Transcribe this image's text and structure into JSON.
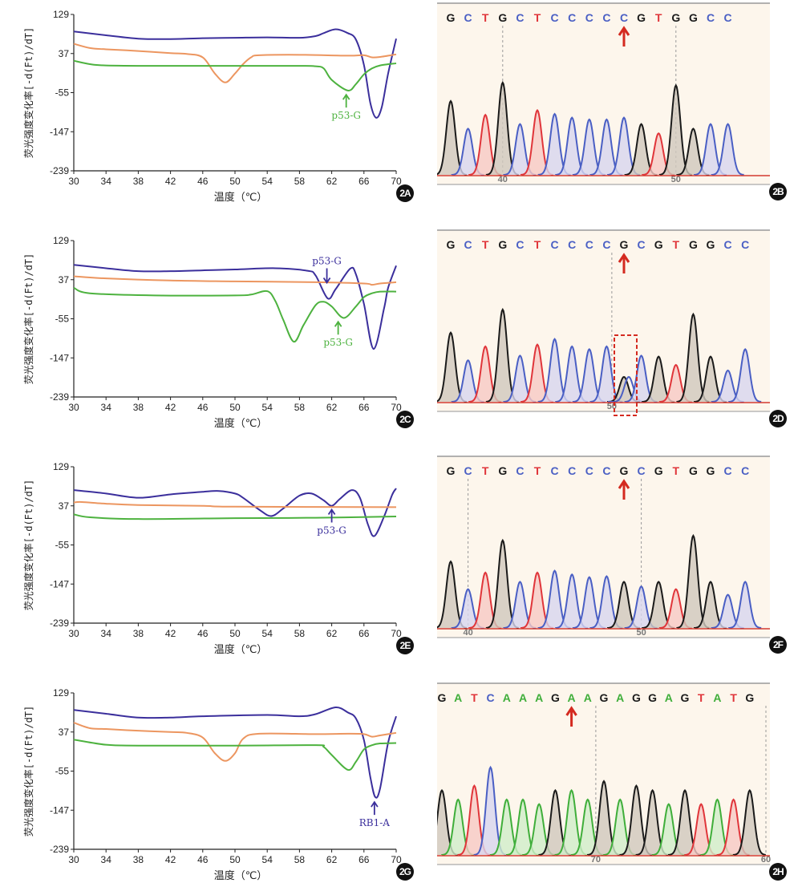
{
  "colors": {
    "blue": "#3b2f9c",
    "orange": "#ec9660",
    "green": "#4db23f",
    "red_arrow": "#d42a20",
    "base_G": "#1a1a1a",
    "base_C": "#4a5fc4",
    "base_T": "#e0353a",
    "base_A": "#3fae3a"
  },
  "chart_data": [
    {
      "id": "2A",
      "type": "line",
      "xlabel": "温度（℃）",
      "ylabel": "荧光强度变化率[-d(Ft)/dT]",
      "xlim": [
        30,
        70
      ],
      "ylim": [
        -239,
        129
      ],
      "xticks": [
        30,
        34,
        38,
        42,
        46,
        50,
        54,
        58,
        62,
        66,
        70
      ],
      "yticks": [
        129,
        37,
        -55,
        -147,
        -239
      ],
      "series": [
        {
          "name": "blue",
          "points": [
            [
              30,
              89
            ],
            [
              34,
              80
            ],
            [
              38,
              72
            ],
            [
              42,
              71
            ],
            [
              46,
              73
            ],
            [
              50,
              74
            ],
            [
              54,
              75
            ],
            [
              58,
              74
            ],
            [
              60,
              78
            ],
            [
              61,
              85
            ],
            [
              62.5,
              94
            ],
            [
              64,
              85
            ],
            [
              65,
              70
            ],
            [
              66,
              10
            ],
            [
              66.8,
              -80
            ],
            [
              67.5,
              -114
            ],
            [
              68.2,
              -90
            ],
            [
              69,
              -10
            ],
            [
              70,
              72
            ]
          ]
        },
        {
          "name": "orange",
          "points": [
            [
              30,
              60
            ],
            [
              32,
              50
            ],
            [
              34,
              47
            ],
            [
              38,
              43
            ],
            [
              42,
              38
            ],
            [
              44,
              36
            ],
            [
              46,
              28
            ],
            [
              47.5,
              -10
            ],
            [
              48.8,
              -31
            ],
            [
              50,
              -10
            ],
            [
              51,
              12
            ],
            [
              52,
              28
            ],
            [
              53,
              33
            ],
            [
              58,
              34
            ],
            [
              64,
              32
            ],
            [
              66,
              33
            ],
            [
              67,
              28
            ],
            [
              68,
              29
            ],
            [
              70,
              35
            ]
          ]
        },
        {
          "name": "green",
          "points": [
            [
              30,
              20
            ],
            [
              32,
              12
            ],
            [
              34,
              9
            ],
            [
              40,
              8
            ],
            [
              50,
              8
            ],
            [
              58,
              8
            ],
            [
              60,
              7
            ],
            [
              61,
              2
            ],
            [
              62,
              -25
            ],
            [
              64,
              -50
            ],
            [
              65,
              -35
            ],
            [
              66,
              -12
            ],
            [
              67,
              2
            ],
            [
              68,
              9
            ],
            [
              70,
              14
            ]
          ]
        }
      ],
      "annotations": [
        {
          "text": "p53-G",
          "color": "green",
          "x": 63.8,
          "y": -60,
          "dir": "up"
        }
      ]
    },
    {
      "id": "2C",
      "type": "line",
      "xlabel": "温度（℃）",
      "ylabel": "荧光强度变化率[-d(Ft)/dT]",
      "xlim": [
        30,
        70
      ],
      "ylim": [
        -239,
        129
      ],
      "xticks": [
        30,
        34,
        38,
        42,
        46,
        50,
        54,
        58,
        62,
        66,
        70
      ],
      "yticks": [
        129,
        37,
        -55,
        -147,
        -239
      ],
      "series": [
        {
          "name": "blue",
          "points": [
            [
              30,
              72
            ],
            [
              34,
              64
            ],
            [
              38,
              57
            ],
            [
              42,
              57
            ],
            [
              46,
              59
            ],
            [
              50,
              61
            ],
            [
              55,
              64
            ],
            [
              59,
              58
            ],
            [
              60,
              47
            ],
            [
              61.5,
              -7
            ],
            [
              62.5,
              15
            ],
            [
              64.3,
              63
            ],
            [
              65,
              50
            ],
            [
              66,
              -20
            ],
            [
              67.2,
              -126
            ],
            [
              68.5,
              -30
            ],
            [
              69,
              18
            ],
            [
              70,
              70
            ]
          ]
        },
        {
          "name": "orange",
          "points": [
            [
              30,
              45
            ],
            [
              34,
              40
            ],
            [
              42,
              35
            ],
            [
              50,
              33
            ],
            [
              60,
              31
            ],
            [
              66,
              28
            ],
            [
              67,
              25
            ],
            [
              68,
              28
            ],
            [
              70,
              31
            ]
          ]
        },
        {
          "name": "green",
          "points": [
            [
              30,
              18
            ],
            [
              32,
              5
            ],
            [
              40,
              0
            ],
            [
              50,
              0
            ],
            [
              52,
              2
            ],
            [
              54,
              10
            ],
            [
              55,
              -13
            ],
            [
              56,
              -58
            ],
            [
              57.3,
              -109
            ],
            [
              58.5,
              -70
            ],
            [
              60,
              -23
            ],
            [
              61,
              -15
            ],
            [
              62,
              -26
            ],
            [
              63.5,
              -53
            ],
            [
              65,
              -26
            ],
            [
              66,
              -4
            ],
            [
              67,
              5
            ],
            [
              68,
              9
            ],
            [
              70,
              9
            ]
          ]
        }
      ],
      "annotations": [
        {
          "text": "p53-G",
          "color": "blue",
          "x": 61.4,
          "y": 30,
          "dir": "down"
        },
        {
          "text": "p53-G",
          "color": "green",
          "x": 62.8,
          "y": -62,
          "dir": "up"
        }
      ]
    },
    {
      "id": "2E",
      "type": "line",
      "xlabel": "温度（℃）",
      "ylabel": "荧光强度变化率[-d(Ft)/dT]",
      "xlim": [
        30,
        70
      ],
      "ylim": [
        -239,
        129
      ],
      "xticks": [
        30,
        34,
        38,
        42,
        46,
        50,
        54,
        58,
        62,
        66,
        70
      ],
      "yticks": [
        129,
        37,
        -55,
        -147,
        -239
      ],
      "series": [
        {
          "name": "blue",
          "points": [
            [
              30,
              74
            ],
            [
              34,
              66
            ],
            [
              38,
              56
            ],
            [
              42,
              64
            ],
            [
              46,
              70
            ],
            [
              48,
              72
            ],
            [
              50,
              66
            ],
            [
              51,
              56
            ],
            [
              53,
              28
            ],
            [
              54.5,
              13
            ],
            [
              56,
              31
            ],
            [
              58,
              61
            ],
            [
              59.5,
              66
            ],
            [
              61,
              50
            ],
            [
              62,
              37
            ],
            [
              63,
              53
            ],
            [
              64.5,
              74
            ],
            [
              65.5,
              56
            ],
            [
              66.5,
              -7
            ],
            [
              67.3,
              -34
            ],
            [
              68.5,
              12
            ],
            [
              69.5,
              63
            ],
            [
              70,
              78
            ]
          ]
        },
        {
          "name": "orange",
          "points": [
            [
              30,
              45
            ],
            [
              31,
              46
            ],
            [
              34,
              42
            ],
            [
              38,
              39
            ],
            [
              46,
              37
            ],
            [
              50,
              35
            ],
            [
              70,
              34
            ]
          ]
        },
        {
          "name": "green",
          "points": [
            [
              30,
              17
            ],
            [
              32,
              10
            ],
            [
              38,
              6
            ],
            [
              50,
              8
            ],
            [
              60,
              9
            ],
            [
              70,
              12
            ]
          ]
        }
      ],
      "annotations": [
        {
          "text": "p53-G",
          "color": "blue",
          "x": 62,
          "y": 28,
          "dir": "up"
        }
      ]
    },
    {
      "id": "2G",
      "type": "line",
      "xlabel": "温度（℃）",
      "ylabel": "荧光强度变化率[-d(Ft)/dT]",
      "xlim": [
        30,
        70
      ],
      "ylim": [
        -239,
        129
      ],
      "xticks": [
        30,
        34,
        38,
        42,
        46,
        50,
        54,
        58,
        62,
        66,
        70
      ],
      "yticks": [
        129,
        37,
        -55,
        -147,
        -239
      ],
      "series": [
        {
          "name": "blue",
          "points": [
            [
              30,
              89
            ],
            [
              34,
              80
            ],
            [
              38,
              71
            ],
            [
              42,
              71
            ],
            [
              46,
              74
            ],
            [
              54,
              77
            ],
            [
              58,
              74
            ],
            [
              60,
              79
            ],
            [
              62.5,
              95
            ],
            [
              64,
              83
            ],
            [
              65,
              69
            ],
            [
              66,
              18
            ],
            [
              66.8,
              -70
            ],
            [
              67.4,
              -116
            ],
            [
              68,
              -96
            ],
            [
              69,
              12
            ],
            [
              70,
              74
            ]
          ]
        },
        {
          "name": "orange",
          "points": [
            [
              30,
              59
            ],
            [
              32,
              46
            ],
            [
              34,
              44
            ],
            [
              38,
              40
            ],
            [
              42,
              37
            ],
            [
              44,
              35
            ],
            [
              46,
              24
            ],
            [
              47.5,
              -13
            ],
            [
              48.8,
              -31
            ],
            [
              50,
              -13
            ],
            [
              51,
              21
            ],
            [
              53,
              33
            ],
            [
              60,
              32
            ],
            [
              64,
              33
            ],
            [
              66,
              32
            ],
            [
              67,
              26
            ],
            [
              68,
              29
            ],
            [
              70,
              35
            ]
          ]
        },
        {
          "name": "green",
          "points": [
            [
              30,
              19
            ],
            [
              34,
              7
            ],
            [
              38,
              5
            ],
            [
              50,
              5
            ],
            [
              60,
              6
            ],
            [
              61,
              2
            ],
            [
              62,
              -17
            ],
            [
              64,
              -52
            ],
            [
              65,
              -33
            ],
            [
              66,
              -4
            ],
            [
              67,
              6
            ],
            [
              68,
              10
            ],
            [
              70,
              11
            ]
          ]
        }
      ],
      "annotations": [
        {
          "text": "RB1-A",
          "color": "blue",
          "x": 67.3,
          "y": -128,
          "dir": "up"
        }
      ]
    }
  ],
  "sequencing": [
    {
      "id": "2B",
      "sequence": "GCTGCTCCCCCGTGGCC",
      "mutation_index": 10,
      "heights": [
        0.8,
        0.5,
        0.65,
        1.0,
        0.55,
        0.7,
        0.66,
        0.62,
        0.6,
        0.6,
        0.62,
        0.55,
        0.45,
        0.97,
        0.5,
        0.55,
        0.55
      ],
      "position_ticks": [
        {
          "label": "40",
          "index": 3
        },
        {
          "label": "50",
          "index": 13
        }
      ]
    },
    {
      "id": "2D",
      "sequence": "GCTGCTCCCCGCGTGGCC",
      "mutation_index": 10,
      "heterozygous_box": true,
      "heights": [
        0.75,
        0.45,
        0.6,
        1.0,
        0.5,
        0.62,
        0.68,
        0.6,
        0.57,
        0.6,
        0.27,
        0.5,
        0.49,
        0.4,
        0.95,
        0.49,
        0.34,
        0.57
      ],
      "position_ticks": [
        {
          "label": "50",
          "index": 9.3
        }
      ]
    },
    {
      "id": "2F",
      "sequence": "GCTGCTCCCCGCGTGGCC",
      "mutation_index": 10,
      "heights": [
        0.72,
        0.42,
        0.6,
        0.95,
        0.5,
        0.6,
        0.62,
        0.58,
        0.55,
        0.56,
        0.5,
        0.45,
        0.5,
        0.42,
        1.0,
        0.5,
        0.36,
        0.5
      ],
      "position_ticks": [
        {
          "label": "40",
          "index": 1
        },
        {
          "label": "50",
          "index": 11
        }
      ]
    },
    {
      "id": "2H",
      "sequence": "GATCAAAGAAGAGGAGTATG",
      "mutation_index": 8,
      "heights": [
        0.7,
        0.6,
        0.75,
        0.95,
        0.6,
        0.6,
        0.55,
        0.7,
        0.7,
        0.6,
        0.8,
        0.6,
        0.75,
        0.7,
        0.55,
        0.7,
        0.55,
        0.6,
        0.6,
        0.7
      ],
      "position_ticks": [
        {
          "label": "70",
          "index": 9.5
        },
        {
          "label": "60",
          "index": 20
        }
      ]
    }
  ]
}
